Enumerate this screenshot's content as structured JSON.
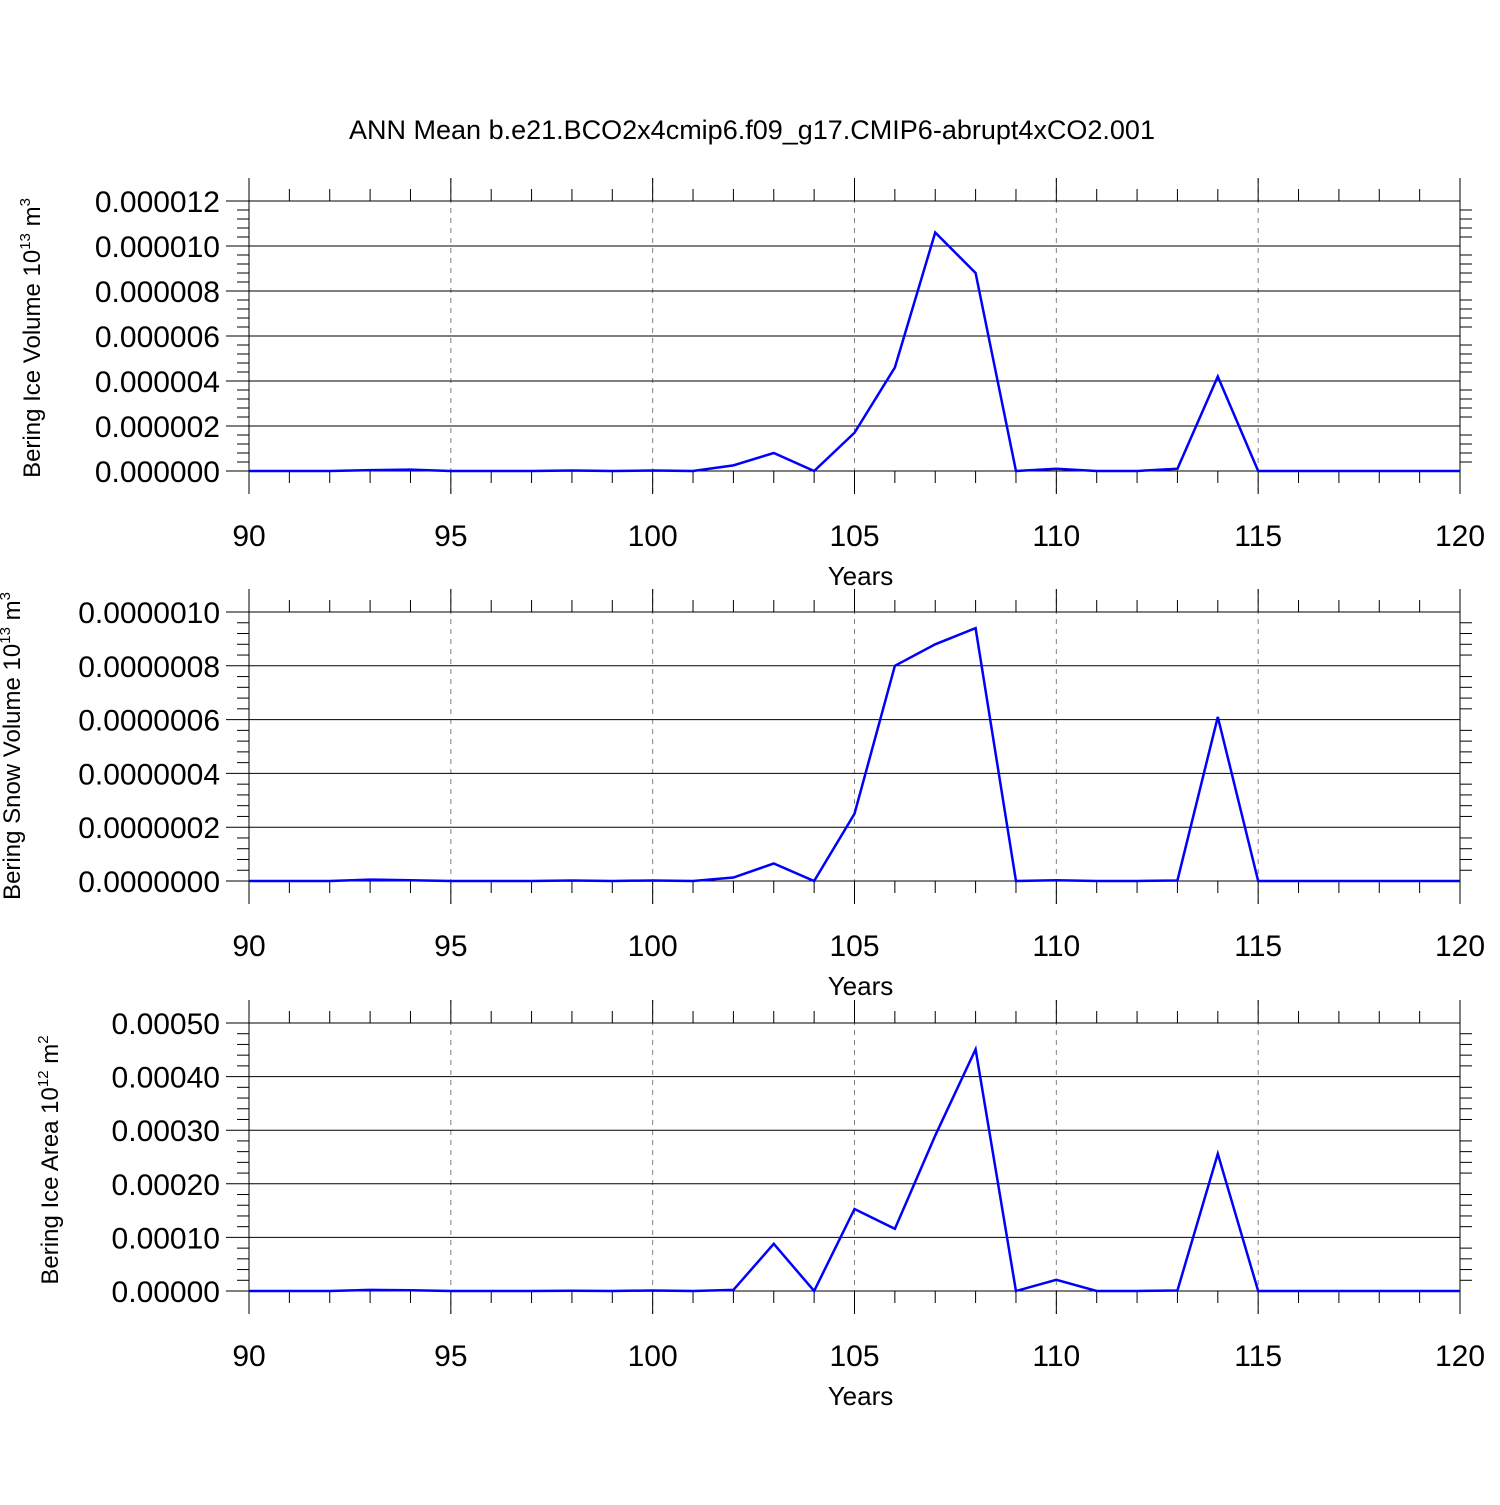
{
  "figure": {
    "title": "ANN Mean b.e21.BCO2x4cmip6.f09_g17.CMIP6-abrupt4xCO2.001"
  },
  "colors": {
    "series_line": "#0000ff",
    "axis": "#000000",
    "grid": "#808080",
    "background": "#ffffff"
  },
  "chart_data": [
    {
      "type": "line",
      "title": "ANN Mean b.e21.BCO2x4cmip6.f09_g17.CMIP6-abrupt4xCO2.001",
      "xlabel": "Years",
      "ylabel": "Bering Ice Volume 10",
      "ylabel_exponent": "13",
      "ylabel_unit": "m",
      "ylabel_unit_exponent": "3",
      "xlim": [
        90,
        120
      ],
      "ylim": [
        0,
        1.2e-05
      ],
      "xticks": [
        90,
        95,
        100,
        105,
        110,
        115,
        120
      ],
      "xtick_labels": [
        "90",
        "95",
        "100",
        "105",
        "110",
        "115",
        "120"
      ],
      "yticks": [
        0,
        2e-06,
        4e-06,
        6e-06,
        8e-06,
        1e-05,
        1.2e-05
      ],
      "ytick_labels": [
        "0.000000",
        "0.000002",
        "0.000004",
        "0.000006",
        "0.000008",
        "0.000010",
        "0.000012"
      ],
      "grid": "vertical dashed at major x ticks",
      "x": [
        90,
        91,
        92,
        93,
        94,
        95,
        96,
        97,
        98,
        99,
        100,
        101,
        102,
        103,
        104,
        105,
        106,
        107,
        108,
        109,
        110,
        111,
        112,
        113,
        114,
        115,
        116,
        117,
        118,
        119,
        120
      ],
      "series": [
        {
          "values": [
            0,
            0,
            0,
            4e-08,
            6e-08,
            0,
            0,
            0,
            2e-08,
            0,
            2e-08,
            0,
            2.5e-07,
            8e-07,
            0,
            1.7e-06,
            4.6e-06,
            1.06e-05,
            8.8e-06,
            0,
            1e-07,
            0,
            0,
            1e-07,
            4.2e-06,
            0,
            0,
            0,
            0,
            0,
            0
          ]
        }
      ]
    },
    {
      "type": "line",
      "xlabel": "Years",
      "ylabel": "Bering Snow Volume 10",
      "ylabel_exponent": "13",
      "ylabel_unit": "m",
      "ylabel_unit_exponent": "3",
      "xlim": [
        90,
        120
      ],
      "ylim": [
        0,
        1e-06
      ],
      "xticks": [
        90,
        95,
        100,
        105,
        110,
        115,
        120
      ],
      "xtick_labels": [
        "90",
        "95",
        "100",
        "105",
        "110",
        "115",
        "120"
      ],
      "yticks": [
        0,
        2e-07,
        4e-07,
        6e-07,
        8e-07,
        1e-06
      ],
      "ytick_labels": [
        "0.0000000",
        "0.0000002",
        "0.0000004",
        "0.0000006",
        "0.0000008",
        "0.0000010"
      ],
      "grid": "vertical dashed at major x ticks",
      "x": [
        90,
        91,
        92,
        93,
        94,
        95,
        96,
        97,
        98,
        99,
        100,
        101,
        102,
        103,
        104,
        105,
        106,
        107,
        108,
        109,
        110,
        111,
        112,
        113,
        114,
        115,
        116,
        117,
        118,
        119,
        120
      ],
      "series": [
        {
          "values": [
            0,
            0,
            0,
            5e-09,
            3e-09,
            0,
            0,
            0,
            2e-09,
            0,
            2e-09,
            0,
            1.3e-08,
            6.5e-08,
            0,
            2.5e-07,
            8e-07,
            8.8e-07,
            9.4e-07,
            0,
            3e-09,
            0,
            0,
            2e-09,
            6.1e-07,
            0,
            0,
            0,
            0,
            0,
            0
          ]
        }
      ]
    },
    {
      "type": "line",
      "xlabel": "Years",
      "ylabel": "Bering Ice Area 10",
      "ylabel_exponent": "12",
      "ylabel_unit": "m",
      "ylabel_unit_exponent": "2",
      "xlim": [
        90,
        120
      ],
      "ylim": [
        0,
        0.0005
      ],
      "xticks": [
        90,
        95,
        100,
        105,
        110,
        115,
        120
      ],
      "xtick_labels": [
        "90",
        "95",
        "100",
        "105",
        "110",
        "115",
        "120"
      ],
      "yticks": [
        0,
        0.0001,
        0.0002,
        0.0003,
        0.0004,
        0.0005
      ],
      "ytick_labels": [
        "0.00000",
        "0.00010",
        "0.00020",
        "0.00030",
        "0.00040",
        "0.00050"
      ],
      "grid": "vertical dashed at major x ticks",
      "x": [
        90,
        91,
        92,
        93,
        94,
        95,
        96,
        97,
        98,
        99,
        100,
        101,
        102,
        103,
        104,
        105,
        106,
        107,
        108,
        109,
        110,
        111,
        112,
        113,
        114,
        115,
        116,
        117,
        118,
        119,
        120
      ],
      "series": [
        {
          "values": [
            0,
            0,
            0,
            2e-06,
            1.5e-06,
            0,
            0,
            0,
            5e-07,
            0,
            1e-06,
            0,
            2e-06,
            8.8e-05,
            0,
            0.000153,
            0.000116,
            0.00029,
            0.000451,
            0,
            2.1e-05,
            0,
            0,
            1e-06,
            0.000256,
            0,
            0,
            0,
            0,
            0,
            0
          ]
        }
      ]
    }
  ]
}
